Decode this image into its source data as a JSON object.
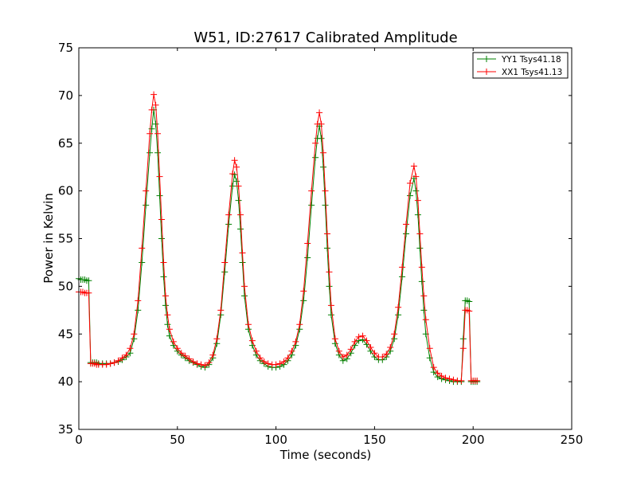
{
  "chart_data": {
    "type": "line",
    "title": "W51, ID:27617 Calibrated Amplitude",
    "xlabel": "Time (seconds)",
    "ylabel": "Power in Kelvin",
    "xlim": [
      0,
      250
    ],
    "ylim": [
      35,
      75
    ],
    "xticks": [
      "0",
      "50",
      "100",
      "150",
      "200",
      "250"
    ],
    "yticks": [
      "35",
      "40",
      "45",
      "50",
      "55",
      "60",
      "65",
      "70",
      "75"
    ],
    "grid": false,
    "legend_position": "top-right",
    "series": [
      {
        "name": "YY1 Tsys41.18",
        "color": "#008000",
        "marker": "plus",
        "points": [
          [
            0,
            50.8
          ],
          [
            1,
            50.7
          ],
          [
            2,
            50.7
          ],
          [
            3,
            50.7
          ],
          [
            4,
            50.6
          ],
          [
            5,
            50.6
          ],
          [
            6,
            42.0
          ],
          [
            7,
            42.0
          ],
          [
            8,
            42.0
          ],
          [
            9,
            42.0
          ],
          [
            10,
            41.9
          ],
          [
            12,
            41.9
          ],
          [
            14,
            41.9
          ],
          [
            16,
            41.9
          ],
          [
            18,
            42.0
          ],
          [
            20,
            42.1
          ],
          [
            22,
            42.3
          ],
          [
            24,
            42.6
          ],
          [
            26,
            43.0
          ],
          [
            28,
            44.5
          ],
          [
            30,
            47.5
          ],
          [
            32,
            52.5
          ],
          [
            34,
            58.5
          ],
          [
            36,
            64.0
          ],
          [
            37,
            66.5
          ],
          [
            38,
            68.5
          ],
          [
            39,
            67.0
          ],
          [
            40,
            64.0
          ],
          [
            41,
            59.5
          ],
          [
            42,
            55.0
          ],
          [
            43,
            51.0
          ],
          [
            44,
            48.0
          ],
          [
            45,
            46.0
          ],
          [
            46,
            44.8
          ],
          [
            48,
            43.8
          ],
          [
            50,
            43.2
          ],
          [
            52,
            42.8
          ],
          [
            54,
            42.5
          ],
          [
            56,
            42.2
          ],
          [
            58,
            42.0
          ],
          [
            60,
            41.8
          ],
          [
            62,
            41.6
          ],
          [
            64,
            41.5
          ],
          [
            66,
            41.8
          ],
          [
            68,
            42.5
          ],
          [
            70,
            44.0
          ],
          [
            72,
            47.0
          ],
          [
            74,
            51.5
          ],
          [
            76,
            56.5
          ],
          [
            78,
            60.5
          ],
          [
            79,
            61.7
          ],
          [
            80,
            61.0
          ],
          [
            81,
            59.0
          ],
          [
            82,
            56.0
          ],
          [
            83,
            52.5
          ],
          [
            84,
            49.0
          ],
          [
            86,
            45.5
          ],
          [
            88,
            43.8
          ],
          [
            90,
            42.8
          ],
          [
            92,
            42.2
          ],
          [
            94,
            41.9
          ],
          [
            96,
            41.6
          ],
          [
            98,
            41.5
          ],
          [
            100,
            41.5
          ],
          [
            102,
            41.6
          ],
          [
            104,
            41.8
          ],
          [
            106,
            42.2
          ],
          [
            108,
            42.8
          ],
          [
            110,
            43.8
          ],
          [
            112,
            45.5
          ],
          [
            114,
            48.5
          ],
          [
            116,
            53.0
          ],
          [
            118,
            58.5
          ],
          [
            120,
            63.5
          ],
          [
            121,
            65.5
          ],
          [
            122,
            66.8
          ],
          [
            123,
            65.5
          ],
          [
            124,
            62.5
          ],
          [
            125,
            58.5
          ],
          [
            126,
            54.0
          ],
          [
            127,
            50.0
          ],
          [
            128,
            47.0
          ],
          [
            130,
            44.0
          ],
          [
            132,
            42.8
          ],
          [
            134,
            42.2
          ],
          [
            136,
            42.4
          ],
          [
            138,
            43.0
          ],
          [
            140,
            43.8
          ],
          [
            142,
            44.3
          ],
          [
            144,
            44.4
          ],
          [
            146,
            43.9
          ],
          [
            148,
            43.2
          ],
          [
            150,
            42.6
          ],
          [
            152,
            42.3
          ],
          [
            154,
            42.3
          ],
          [
            156,
            42.6
          ],
          [
            158,
            43.2
          ],
          [
            160,
            44.5
          ],
          [
            162,
            47.0
          ],
          [
            164,
            51.0
          ],
          [
            166,
            55.5
          ],
          [
            168,
            59.5
          ],
          [
            170,
            61.3
          ],
          [
            171,
            60.0
          ],
          [
            172,
            57.5
          ],
          [
            173,
            54.0
          ],
          [
            174,
            50.5
          ],
          [
            175,
            47.5
          ],
          [
            176,
            45.0
          ],
          [
            178,
            42.5
          ],
          [
            180,
            41.0
          ],
          [
            182,
            40.5
          ],
          [
            184,
            40.3
          ],
          [
            186,
            40.2
          ],
          [
            188,
            40.1
          ],
          [
            190,
            40.0
          ],
          [
            192,
            40.0
          ],
          [
            194,
            40.0
          ],
          [
            195,
            44.5
          ],
          [
            196,
            48.5
          ],
          [
            197,
            48.5
          ],
          [
            198,
            48.4
          ],
          [
            199,
            40.0
          ],
          [
            200,
            40.0
          ],
          [
            201,
            40.0
          ],
          [
            202,
            40.0
          ]
        ]
      },
      {
        "name": "XX1 Tsys41.13",
        "color": "#ff0000",
        "marker": "plus",
        "points": [
          [
            0,
            49.4
          ],
          [
            1,
            49.4
          ],
          [
            2,
            49.4
          ],
          [
            3,
            49.3
          ],
          [
            4,
            49.3
          ],
          [
            5,
            49.3
          ],
          [
            6,
            41.9
          ],
          [
            7,
            41.9
          ],
          [
            8,
            41.9
          ],
          [
            9,
            41.8
          ],
          [
            10,
            41.8
          ],
          [
            12,
            41.8
          ],
          [
            14,
            41.8
          ],
          [
            16,
            41.9
          ],
          [
            18,
            42.0
          ],
          [
            20,
            42.2
          ],
          [
            22,
            42.5
          ],
          [
            24,
            42.8
          ],
          [
            26,
            43.5
          ],
          [
            28,
            45.0
          ],
          [
            30,
            48.5
          ],
          [
            32,
            54.0
          ],
          [
            34,
            60.0
          ],
          [
            36,
            66.0
          ],
          [
            37,
            68.5
          ],
          [
            38,
            70.1
          ],
          [
            39,
            69.0
          ],
          [
            40,
            66.0
          ],
          [
            41,
            61.5
          ],
          [
            42,
            57.0
          ],
          [
            43,
            52.5
          ],
          [
            44,
            49.0
          ],
          [
            45,
            47.0
          ],
          [
            46,
            45.5
          ],
          [
            48,
            44.2
          ],
          [
            50,
            43.5
          ],
          [
            52,
            43.0
          ],
          [
            54,
            42.7
          ],
          [
            56,
            42.4
          ],
          [
            58,
            42.1
          ],
          [
            60,
            41.9
          ],
          [
            62,
            41.8
          ],
          [
            64,
            41.7
          ],
          [
            66,
            42.0
          ],
          [
            68,
            42.8
          ],
          [
            70,
            44.5
          ],
          [
            72,
            47.5
          ],
          [
            74,
            52.5
          ],
          [
            76,
            57.5
          ],
          [
            78,
            61.8
          ],
          [
            79,
            63.2
          ],
          [
            80,
            62.5
          ],
          [
            81,
            60.5
          ],
          [
            82,
            57.5
          ],
          [
            83,
            53.5
          ],
          [
            84,
            50.0
          ],
          [
            86,
            46.0
          ],
          [
            88,
            44.3
          ],
          [
            90,
            43.2
          ],
          [
            92,
            42.5
          ],
          [
            94,
            42.1
          ],
          [
            96,
            41.9
          ],
          [
            98,
            41.8
          ],
          [
            100,
            41.8
          ],
          [
            102,
            41.9
          ],
          [
            104,
            42.1
          ],
          [
            106,
            42.5
          ],
          [
            108,
            43.2
          ],
          [
            110,
            44.2
          ],
          [
            112,
            46.0
          ],
          [
            114,
            49.5
          ],
          [
            116,
            54.5
          ],
          [
            118,
            60.0
          ],
          [
            120,
            65.0
          ],
          [
            121,
            67.0
          ],
          [
            122,
            68.2
          ],
          [
            123,
            67.0
          ],
          [
            124,
            64.0
          ],
          [
            125,
            60.0
          ],
          [
            126,
            55.5
          ],
          [
            127,
            51.5
          ],
          [
            128,
            48.0
          ],
          [
            130,
            44.5
          ],
          [
            132,
            43.2
          ],
          [
            134,
            42.6
          ],
          [
            136,
            42.8
          ],
          [
            138,
            43.4
          ],
          [
            140,
            44.2
          ],
          [
            142,
            44.7
          ],
          [
            144,
            44.8
          ],
          [
            146,
            44.3
          ],
          [
            148,
            43.6
          ],
          [
            150,
            43.0
          ],
          [
            152,
            42.6
          ],
          [
            154,
            42.6
          ],
          [
            156,
            42.9
          ],
          [
            158,
            43.6
          ],
          [
            160,
            45.0
          ],
          [
            162,
            47.8
          ],
          [
            164,
            52.0
          ],
          [
            166,
            56.5
          ],
          [
            168,
            60.8
          ],
          [
            170,
            62.6
          ],
          [
            171,
            61.5
          ],
          [
            172,
            59.0
          ],
          [
            173,
            55.5
          ],
          [
            174,
            52.0
          ],
          [
            175,
            49.0
          ],
          [
            176,
            46.5
          ],
          [
            178,
            43.5
          ],
          [
            180,
            41.5
          ],
          [
            182,
            40.9
          ],
          [
            184,
            40.6
          ],
          [
            186,
            40.4
          ],
          [
            188,
            40.3
          ],
          [
            190,
            40.2
          ],
          [
            192,
            40.1
          ],
          [
            194,
            40.1
          ],
          [
            195,
            43.5
          ],
          [
            196,
            47.5
          ],
          [
            197,
            47.5
          ],
          [
            198,
            47.4
          ],
          [
            199,
            40.1
          ],
          [
            200,
            40.1
          ],
          [
            201,
            40.1
          ],
          [
            202,
            40.1
          ]
        ]
      }
    ]
  }
}
